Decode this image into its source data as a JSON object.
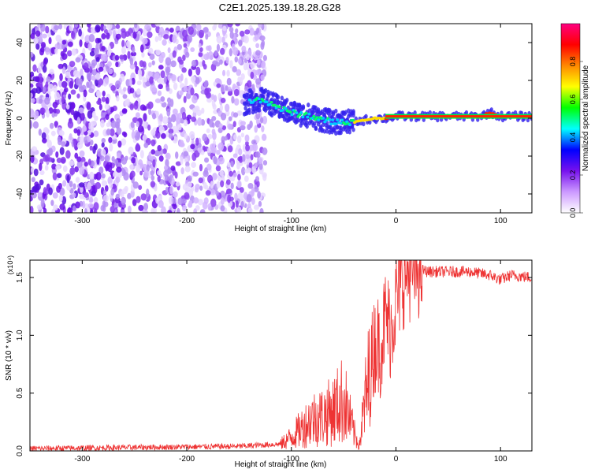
{
  "title": "C2E1.2025.139.18.28.G28",
  "chart_data": [
    {
      "type": "heatmap",
      "xlabel": "Height of straight line (km)",
      "ylabel": "Frequency (Hz)",
      "xlim": [
        -350,
        130
      ],
      "ylim": [
        -50,
        50
      ],
      "xticks": [
        -300,
        -200,
        -100,
        0,
        100
      ],
      "yticks": [
        -40,
        -20,
        0,
        20,
        40
      ],
      "grid": false,
      "colorbar": {
        "label": "Normalized spectral amplitude",
        "range": [
          0.0,
          1.0
        ],
        "ticks": [
          0.0,
          0.2,
          0.4,
          0.6,
          0.8
        ],
        "colors": [
          "#ffffff",
          "#cc99ff",
          "#7711ee",
          "#0000ff",
          "#00ffff",
          "#00ff00",
          "#ffff00",
          "#ff8800",
          "#ff0000",
          "#ff0080"
        ]
      },
      "signal_track": {
        "x": [
          -145,
          -130,
          -120,
          -110,
          -100,
          -90,
          -80,
          -70,
          -60,
          -50,
          -40,
          -30,
          -20,
          -10,
          0,
          20,
          40,
          60,
          80,
          90,
          100,
          130
        ],
        "y": [
          8,
          10,
          8,
          5,
          3,
          2,
          1,
          -1,
          -2,
          -2,
          -2,
          -1,
          0,
          0,
          1,
          1,
          1,
          1,
          1,
          3,
          1,
          1
        ]
      },
      "noise_region_x": [
        -350,
        -125
      ]
    },
    {
      "type": "line",
      "xlabel": "Height of straight line (km)",
      "ylabel": "SNR (10 * v/v)",
      "y_multiplier": "(x10⁴)",
      "xlim": [
        -350,
        130
      ],
      "ylim": [
        0,
        1.65
      ],
      "xticks": [
        -300,
        -200,
        -100,
        0,
        100
      ],
      "yticks": [
        0.0,
        0.5,
        1.0,
        1.5
      ],
      "color": "#ee3333",
      "x": [
        -350,
        -250,
        -150,
        -110,
        -100,
        -90,
        -80,
        -70,
        -60,
        -50,
        -45,
        -40,
        -35,
        -30,
        -25,
        -20,
        -15,
        -10,
        -5,
        0,
        5,
        10,
        20,
        30,
        50,
        70,
        90,
        100,
        110,
        130
      ],
      "y": [
        0.02,
        0.03,
        0.04,
        0.06,
        0.12,
        0.2,
        0.28,
        0.3,
        0.35,
        0.45,
        0.3,
        0.15,
        0.05,
        0.4,
        0.65,
        0.95,
        0.9,
        1.15,
        1.05,
        1.3,
        1.45,
        1.55,
        1.58,
        1.55,
        1.55,
        1.55,
        1.52,
        1.48,
        1.52,
        1.5
      ]
    }
  ]
}
